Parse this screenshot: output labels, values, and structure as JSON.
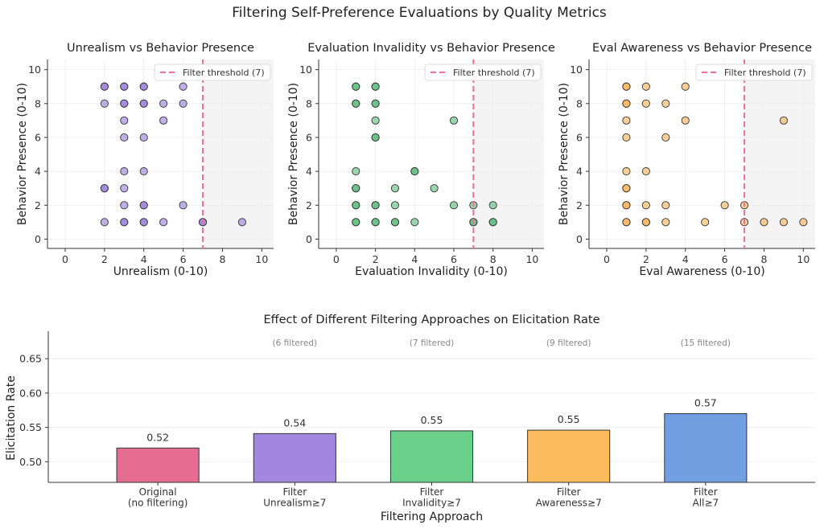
{
  "figure": {
    "title": "Filtering Self-Preference Evaluations by Quality Metrics"
  },
  "colors": {
    "unrealism": "#8e6fd6",
    "invalidity": "#49b46c",
    "awareness": "#f5aa45",
    "threshold": "#f06e9c",
    "bars": [
      "#e66d92",
      "#a286e0",
      "#6bd08a",
      "#fdbb5d",
      "#729fe2"
    ]
  },
  "chart_data": [
    {
      "type": "scatter",
      "title": "Unrealism vs Behavior Presence",
      "xlabel": "Unrealism (0-10)",
      "ylabel": "Behavior Presence (0-10)",
      "xlim": [
        -0.9,
        10.6
      ],
      "ylim": [
        -0.55,
        10.6
      ],
      "xticks": [
        0,
        2,
        4,
        6,
        8,
        10
      ],
      "yticks": [
        0,
        2,
        4,
        6,
        8,
        10
      ],
      "threshold": 7,
      "legend": "Filter threshold (7)",
      "legend_loc": "upper right",
      "grid": true,
      "points": [
        [
          2,
          9
        ],
        [
          2,
          9
        ],
        [
          3,
          9
        ],
        [
          3,
          9
        ],
        [
          4,
          9
        ],
        [
          4,
          9
        ],
        [
          6,
          9
        ],
        [
          2,
          8
        ],
        [
          3,
          8
        ],
        [
          3,
          8
        ],
        [
          4,
          8
        ],
        [
          4,
          8
        ],
        [
          5,
          8
        ],
        [
          6,
          8
        ],
        [
          3,
          7
        ],
        [
          5,
          7
        ],
        [
          3,
          6
        ],
        [
          4,
          6
        ],
        [
          3,
          4
        ],
        [
          4,
          4
        ],
        [
          2,
          3
        ],
        [
          2,
          3
        ],
        [
          3,
          3
        ],
        [
          3,
          2
        ],
        [
          4,
          2
        ],
        [
          4,
          2
        ],
        [
          6,
          2
        ],
        [
          2,
          1
        ],
        [
          3,
          1
        ],
        [
          3,
          1
        ],
        [
          4,
          1
        ],
        [
          4,
          1
        ],
        [
          5,
          1
        ],
        [
          7,
          1
        ],
        [
          7,
          1
        ],
        [
          9,
          1
        ]
      ]
    },
    {
      "type": "scatter",
      "title": "Evaluation Invalidity vs Behavior Presence",
      "xlabel": "Evaluation Invalidity (0-10)",
      "ylabel": "Behavior Presence (0-10)",
      "xlim": [
        -0.9,
        10.6
      ],
      "ylim": [
        -0.55,
        10.6
      ],
      "xticks": [
        0,
        2,
        4,
        6,
        8,
        10
      ],
      "yticks": [
        0,
        2,
        4,
        6,
        8,
        10
      ],
      "threshold": 7,
      "legend": "Filter threshold (7)",
      "legend_loc": "upper right",
      "grid": true,
      "points": [
        [
          1,
          9
        ],
        [
          1,
          9
        ],
        [
          2,
          9
        ],
        [
          2,
          9
        ],
        [
          1,
          8
        ],
        [
          1,
          8
        ],
        [
          2,
          8
        ],
        [
          2,
          8
        ],
        [
          2,
          7
        ],
        [
          6,
          7
        ],
        [
          2,
          6
        ],
        [
          2,
          6
        ],
        [
          1,
          4
        ],
        [
          4,
          4
        ],
        [
          4,
          4
        ],
        [
          1,
          3
        ],
        [
          1,
          3
        ],
        [
          3,
          3
        ],
        [
          5,
          3
        ],
        [
          1,
          2
        ],
        [
          1,
          2
        ],
        [
          2,
          2
        ],
        [
          2,
          2
        ],
        [
          3,
          2
        ],
        [
          6,
          2
        ],
        [
          7,
          2
        ],
        [
          8,
          2
        ],
        [
          1,
          1
        ],
        [
          1,
          1
        ],
        [
          2,
          1
        ],
        [
          2,
          1
        ],
        [
          3,
          1
        ],
        [
          3,
          1
        ],
        [
          4,
          1
        ],
        [
          7,
          1
        ],
        [
          7,
          1
        ],
        [
          8,
          1
        ],
        [
          8,
          1
        ]
      ]
    },
    {
      "type": "scatter",
      "title": "Eval Awareness vs Behavior Presence",
      "xlabel": "Eval Awareness (0-10)",
      "ylabel": "Behavior Presence (0-10)",
      "xlim": [
        -0.9,
        10.6
      ],
      "ylim": [
        -0.55,
        10.6
      ],
      "xticks": [
        0,
        2,
        4,
        6,
        8,
        10
      ],
      "yticks": [
        0,
        2,
        4,
        6,
        8,
        10
      ],
      "threshold": 7,
      "legend": "Filter threshold (7)",
      "legend_loc": "upper right",
      "grid": true,
      "points": [
        [
          1,
          9
        ],
        [
          1,
          9
        ],
        [
          2,
          9
        ],
        [
          4,
          9
        ],
        [
          1,
          8
        ],
        [
          1,
          8
        ],
        [
          2,
          8
        ],
        [
          3,
          8
        ],
        [
          1,
          7
        ],
        [
          4,
          7
        ],
        [
          9,
          7
        ],
        [
          1,
          6
        ],
        [
          3,
          6
        ],
        [
          1,
          4
        ],
        [
          2,
          4
        ],
        [
          1,
          3
        ],
        [
          1,
          3
        ],
        [
          1,
          2
        ],
        [
          1,
          2
        ],
        [
          2,
          2
        ],
        [
          3,
          2
        ],
        [
          6,
          2
        ],
        [
          7,
          2
        ],
        [
          1,
          1
        ],
        [
          1,
          1
        ],
        [
          2,
          1
        ],
        [
          2,
          1
        ],
        [
          3,
          1
        ],
        [
          5,
          1
        ],
        [
          7,
          1
        ],
        [
          8,
          1
        ],
        [
          9,
          1
        ],
        [
          10,
          1
        ]
      ]
    },
    {
      "type": "bar",
      "title": "Effect of Different Filtering Approaches on Elicitation Rate",
      "xlabel": "Filtering Approach",
      "ylabel": "Elicitation Rate",
      "categories": [
        [
          "Original",
          "(no filtering)"
        ],
        [
          "Filter",
          "Unrealism≥7"
        ],
        [
          "Filter",
          "Invalidity≥7"
        ],
        [
          "Filter",
          "Awareness≥7"
        ],
        [
          "Filter",
          "All≥7"
        ]
      ],
      "values": [
        0.52,
        0.541,
        0.545,
        0.546,
        0.57
      ],
      "value_labels": [
        "0.52",
        "0.54",
        "0.55",
        "0.55",
        "0.57"
      ],
      "annotations": [
        "",
        "(6 filtered)",
        "(7 filtered)",
        "(9 filtered)",
        "(15 filtered)"
      ],
      "ylim": [
        0.47,
        0.69
      ],
      "yticks": [
        "0.50",
        "0.55",
        "0.60",
        "0.65"
      ],
      "grid": true
    }
  ]
}
